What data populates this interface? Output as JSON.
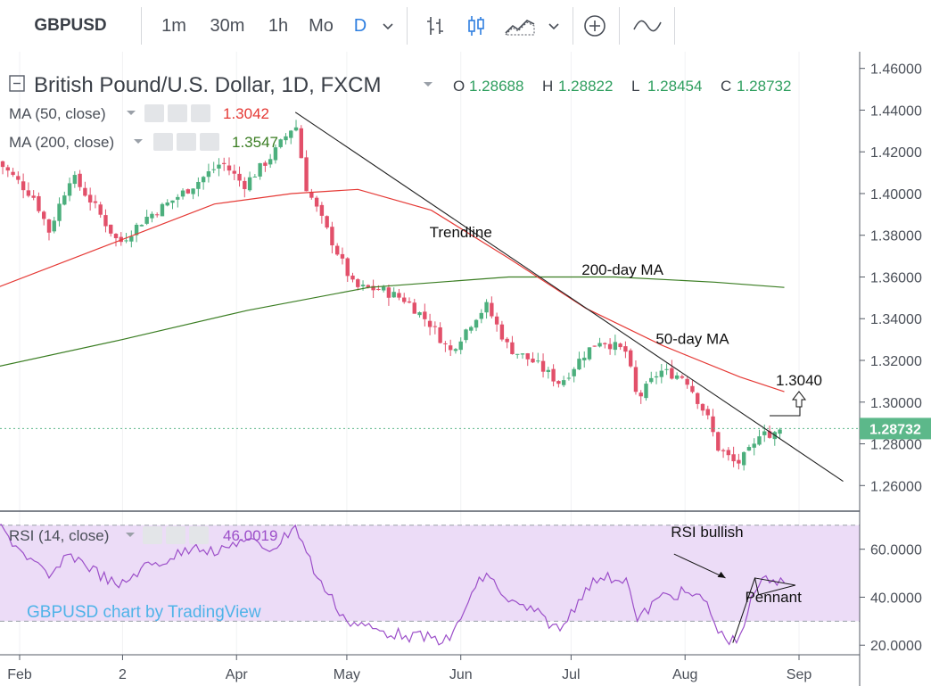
{
  "toolbar": {
    "symbol": "GBPUSD",
    "intervals": [
      "1m",
      "30m",
      "1h",
      "Mo",
      "D"
    ],
    "active_interval": "D",
    "icons": [
      "chevron-down-icon",
      "bars-chart-icon",
      "candles-chart-icon",
      "area-chart-icon",
      "chevron-down-icon",
      "add-indicator-icon",
      "compare-line-icon"
    ]
  },
  "header": {
    "title": "British Pound/U.S. Dollar, 1D, FXCM",
    "ohlc": [
      {
        "label": "O",
        "value": "1.28688"
      },
      {
        "label": "H",
        "value": "1.28822"
      },
      {
        "label": "L",
        "value": "1.28454"
      },
      {
        "label": "C",
        "value": "1.28732"
      }
    ],
    "studies": [
      {
        "name": "MA (50, close)",
        "value": "1.3042",
        "color": "#e53935"
      },
      {
        "name": "MA (200, close)",
        "value": "1.3547",
        "color": "#3a7d22"
      }
    ]
  },
  "colors": {
    "up": "#4caf7d",
    "down": "#e2506a",
    "ma50": "#e53935",
    "ma200": "#3a7d22",
    "rsi": "#9c4fc9",
    "rsi_band": "#ecdcf7",
    "last_price_bg": "#5cb88a",
    "header_values": "#2e9e5e"
  },
  "chart_data": [
    {
      "type": "candlestick",
      "title": "British Pound/U.S. Dollar, 1D, FXCM",
      "ylim": [
        1.252,
        1.462
      ],
      "y_ticks": [
        "1.46000",
        "1.44000",
        "1.42000",
        "1.40000",
        "1.38000",
        "1.36000",
        "1.34000",
        "1.32000",
        "1.30000",
        "1.28000",
        "1.26000"
      ],
      "x_ticks": [
        "Feb",
        "2",
        "Apr",
        "May",
        "Jun",
        "Jul",
        "Aug",
        "Sep"
      ],
      "close_series": [
        [
          "2018-01-26",
          1.4155
        ],
        [
          "2018-02-05",
          1.398
        ],
        [
          "2018-02-09",
          1.382
        ],
        [
          "2018-02-15",
          1.409
        ],
        [
          "2018-02-21",
          1.395
        ],
        [
          "2018-02-28",
          1.376
        ],
        [
          "2018-03-07",
          1.388
        ],
        [
          "2018-03-14",
          1.396
        ],
        [
          "2018-03-21",
          1.405
        ],
        [
          "2018-03-28",
          1.415
        ],
        [
          "2018-04-03",
          1.404
        ],
        [
          "2018-04-11",
          1.419
        ],
        [
          "2018-04-17",
          1.434
        ],
        [
          "2018-04-20",
          1.403
        ],
        [
          "2018-04-27",
          1.377
        ],
        [
          "2018-05-03",
          1.355
        ],
        [
          "2018-05-10",
          1.354
        ],
        [
          "2018-05-17",
          1.349
        ],
        [
          "2018-05-24",
          1.337
        ],
        [
          "2018-05-29",
          1.324
        ],
        [
          "2018-06-05",
          1.341
        ],
        [
          "2018-06-08",
          1.346
        ],
        [
          "2018-06-14",
          1.326
        ],
        [
          "2018-06-21",
          1.319
        ],
        [
          "2018-06-28",
          1.309
        ],
        [
          "2018-07-05",
          1.324
        ],
        [
          "2018-07-09",
          1.33
        ],
        [
          "2018-07-16",
          1.324
        ],
        [
          "2018-07-19",
          1.301
        ],
        [
          "2018-07-25",
          1.315
        ],
        [
          "2018-08-01",
          1.312
        ],
        [
          "2018-08-07",
          1.293
        ],
        [
          "2018-08-10",
          1.278
        ],
        [
          "2018-08-15",
          1.27
        ],
        [
          "2018-08-20",
          1.279
        ],
        [
          "2018-08-22",
          1.29
        ],
        [
          "2018-08-24",
          1.283
        ],
        [
          "2018-08-28",
          1.2873
        ]
      ],
      "series": [
        {
          "name": "MA (50, close)",
          "points": [
            [
              "2018-01-26",
              1.355
            ],
            [
              "2018-02-26",
              1.376
            ],
            [
              "2018-03-26",
              1.395
            ],
            [
              "2018-04-16",
              1.4
            ],
            [
              "2018-05-04",
              1.402
            ],
            [
              "2018-05-24",
              1.392
            ],
            [
              "2018-06-14",
              1.369
            ],
            [
              "2018-07-05",
              1.345
            ],
            [
              "2018-07-26",
              1.327
            ],
            [
              "2018-08-16",
              1.312
            ],
            [
              "2018-08-28",
              1.305
            ]
          ]
        },
        {
          "name": "MA (200, close)",
          "points": [
            [
              "2018-01-26",
              1.317
            ],
            [
              "2018-03-01",
              1.33
            ],
            [
              "2018-04-04",
              1.344
            ],
            [
              "2018-05-07",
              1.355
            ],
            [
              "2018-06-14",
              1.36
            ],
            [
              "2018-07-13",
              1.36
            ],
            [
              "2018-08-09",
              1.3575
            ],
            [
              "2018-08-28",
              1.355
            ]
          ]
        }
      ],
      "trendline": {
        "label": "Trendline",
        "points": [
          [
            "2018-04-17",
            1.439
          ],
          [
            "2018-09-13",
            1.262
          ]
        ]
      },
      "annotations": [
        {
          "text": "Trendline",
          "x": "2018-06-01",
          "y": 1.379
        },
        {
          "text": "200-day MA",
          "x": "2018-07-15",
          "y": 1.361
        },
        {
          "text": "50-day MA",
          "x": "2018-08-03",
          "y": 1.328
        },
        {
          "text": "1.3040",
          "x": "2018-09-01",
          "y": 1.308
        }
      ],
      "last_price": "1.28732"
    },
    {
      "type": "line",
      "title": "RSI (14, close)",
      "value": "46.0019",
      "ylim": [
        16,
        74
      ],
      "y_ticks": [
        "60.0000",
        "40.0000",
        "20.0000"
      ],
      "bands": [
        70,
        30
      ],
      "x": [
        "2018-01-26",
        "2018-02-01",
        "2018-02-09",
        "2018-02-15",
        "2018-02-28",
        "2018-03-06",
        "2018-03-14",
        "2018-03-21",
        "2018-03-27",
        "2018-04-02",
        "2018-04-11",
        "2018-04-17",
        "2018-04-23",
        "2018-05-01",
        "2018-05-10",
        "2018-05-17",
        "2018-05-29",
        "2018-06-05",
        "2018-06-08",
        "2018-06-14",
        "2018-06-21",
        "2018-06-28",
        "2018-07-05",
        "2018-07-09",
        "2018-07-16",
        "2018-07-19",
        "2018-07-25",
        "2018-08-01",
        "2018-08-07",
        "2018-08-10",
        "2018-08-15",
        "2018-08-20",
        "2018-08-22",
        "2018-08-24",
        "2018-08-28"
      ],
      "values": [
        70,
        60,
        48,
        58,
        44,
        52,
        56,
        62,
        58,
        64,
        60,
        70,
        48,
        30,
        26,
        24,
        22,
        44,
        50,
        38,
        34,
        26,
        44,
        48,
        48,
        30,
        40,
        42,
        38,
        25,
        21,
        42,
        48,
        46,
        46
      ],
      "watermark": "GBPUSD chart by TradingView",
      "annotations": [
        {
          "text": "RSI bullish",
          "x": "2018-08-07",
          "y": 65
        },
        {
          "text": "Pennant",
          "x": "2018-08-25",
          "y": 38
        }
      ]
    }
  ]
}
